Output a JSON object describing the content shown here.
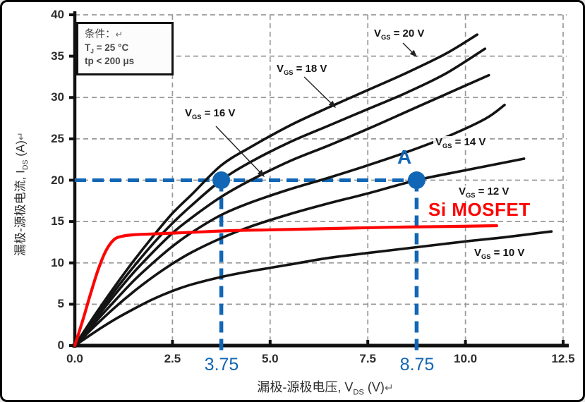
{
  "condition_box": {
    "title": "条件：",
    "title_mark": "↵",
    "line2": {
      "pre": "T",
      "sub": "J",
      "post": " = 25 °C"
    },
    "line3": "tp < 200 μs"
  },
  "axis_labels": {
    "y": {
      "pre": "漏极-源极电流,  I",
      "sub": "DS",
      "post": " (A)",
      "mark": "↵"
    },
    "x": {
      "pre": "漏极-源极电压,  V",
      "sub": "DS",
      "post": " (V)",
      "mark": "↵"
    }
  },
  "axes": {
    "y_tick_labels": [
      "0",
      "5",
      "10",
      "15",
      "20",
      "25",
      "30",
      "35",
      "40"
    ],
    "x_tick_labels": [
      "0.0",
      "2.5",
      "5.0",
      "7.5",
      "10.0",
      "12.5"
    ]
  },
  "curve_labels": [
    {
      "pre": "V",
      "sub": "GS",
      "post": " = 20 V"
    },
    {
      "pre": "V",
      "sub": "GS",
      "post": " = 18 V"
    },
    {
      "pre": "V",
      "sub": "GS",
      "post": " = 16 V"
    },
    {
      "pre": "V",
      "sub": "GS",
      "post": " = 14 V"
    },
    {
      "pre": "V",
      "sub": "GS",
      "post": " = 12 V"
    },
    {
      "pre": "V",
      "sub": "GS",
      "post": " = 10 V"
    }
  ],
  "annotations": {
    "point_label": "A",
    "x1_label": "3.75",
    "x2_label": "8.75",
    "red_label": "Si MOSFET"
  },
  "colors": {
    "accent_blue": "#1166b5",
    "curve_red": "#fd0404",
    "curve_black": "#141414",
    "grid": "#999999",
    "axis": "#111111"
  },
  "chart_data": {
    "type": "line",
    "title": "",
    "xlabel": "漏极-源极电压, VDS (V)",
    "ylabel": "漏极-源极电流, IDS (A)",
    "xlim": [
      0,
      12.5
    ],
    "ylim": [
      0,
      40
    ],
    "x_ticks": [
      0,
      2.5,
      5,
      7.5,
      10,
      12.5
    ],
    "y_ticks": [
      0,
      5,
      10,
      15,
      20,
      25,
      30,
      35,
      40
    ],
    "grid": true,
    "conditions": [
      "TJ = 25 °C",
      "tp < 200 μs"
    ],
    "series": [
      {
        "name": "VGS = 20 V",
        "color": "black",
        "x": [
          0,
          0.5,
          1,
          1.5,
          2,
          2.5,
          3,
          3.75,
          4.5,
          5.5,
          6.5,
          7.5,
          8.5,
          9.5,
          10.3
        ],
        "y": [
          0,
          3.6,
          7,
          10.2,
          13.2,
          16,
          18.3,
          21.8,
          24,
          26.6,
          28.8,
          30.9,
          33,
          35.3,
          37.6
        ]
      },
      {
        "name": "VGS = 18 V",
        "color": "black",
        "x": [
          0,
          0.5,
          1,
          1.5,
          2,
          2.5,
          3,
          3.75,
          4.5,
          5.5,
          6.5,
          7.5,
          8.5,
          9.5,
          10.5
        ],
        "y": [
          0,
          3.3,
          6.5,
          9.5,
          12.3,
          14.8,
          17,
          20,
          22.2,
          24.6,
          26.6,
          28.6,
          30.6,
          32.9,
          35.9
        ]
      },
      {
        "name": "VGS = 16 V",
        "color": "black",
        "x": [
          0,
          0.5,
          1,
          1.5,
          2,
          2.5,
          3,
          3.75,
          4.5,
          5.5,
          6.5,
          7.5,
          8.5,
          9.5,
          10.6
        ],
        "y": [
          0,
          3,
          6,
          8.8,
          11.3,
          13.6,
          15.5,
          18,
          20,
          22.3,
          24.2,
          26.2,
          28.3,
          30.4,
          32.7
        ]
      },
      {
        "name": "VGS = 14 V",
        "color": "black",
        "x": [
          0,
          0.5,
          1,
          1.5,
          2,
          2.5,
          3,
          3.75,
          4.5,
          5.5,
          6.5,
          7.5,
          8.5,
          9.5,
          10.5,
          11
        ],
        "y": [
          0,
          2.7,
          5.3,
          7.8,
          10,
          12,
          13.7,
          15.8,
          17.3,
          18.9,
          20.3,
          21.8,
          23.4,
          25.2,
          27.4,
          29.1
        ]
      },
      {
        "name": "VGS = 12 V",
        "color": "black",
        "x": [
          0,
          0.5,
          1,
          1.5,
          2,
          2.5,
          3,
          3.75,
          4.5,
          5.5,
          6.5,
          7.5,
          8.75,
          10,
          11.5
        ],
        "y": [
          0,
          2.3,
          4.5,
          6.5,
          8.3,
          9.9,
          11.3,
          13,
          14.4,
          15.9,
          17.2,
          18.4,
          20,
          21.2,
          22.6
        ]
      },
      {
        "name": "VGS = 10 V",
        "color": "black",
        "x": [
          0,
          0.5,
          1,
          1.5,
          2,
          2.5,
          3,
          3.75,
          4.5,
          5.5,
          6.5,
          7.5,
          8.75,
          10,
          11,
          12.2
        ],
        "y": [
          0,
          1.6,
          3.1,
          4.4,
          5.6,
          6.6,
          7.4,
          8.3,
          9,
          9.8,
          10.6,
          11.2,
          11.9,
          12.6,
          13.1,
          13.8
        ]
      },
      {
        "name": "Si MOSFET",
        "color": "red",
        "x": [
          0,
          0.2,
          0.4,
          0.6,
          0.8,
          1,
          1.2,
          1.5,
          2,
          3,
          4,
          5,
          6.5,
          8,
          9.5,
          10.8
        ],
        "y": [
          0,
          3,
          6.2,
          9.2,
          11.5,
          12.8,
          13.2,
          13.4,
          13.5,
          13.7,
          13.9,
          14,
          14.15,
          14.3,
          14.4,
          14.5
        ]
      }
    ],
    "annotation_points": [
      {
        "label": "",
        "x": 3.75,
        "y": 20
      },
      {
        "label": "A",
        "x": 8.75,
        "y": 20
      }
    ],
    "dashed_guides": {
      "y_level": 20,
      "x_values": [
        3.75,
        8.75
      ]
    }
  }
}
